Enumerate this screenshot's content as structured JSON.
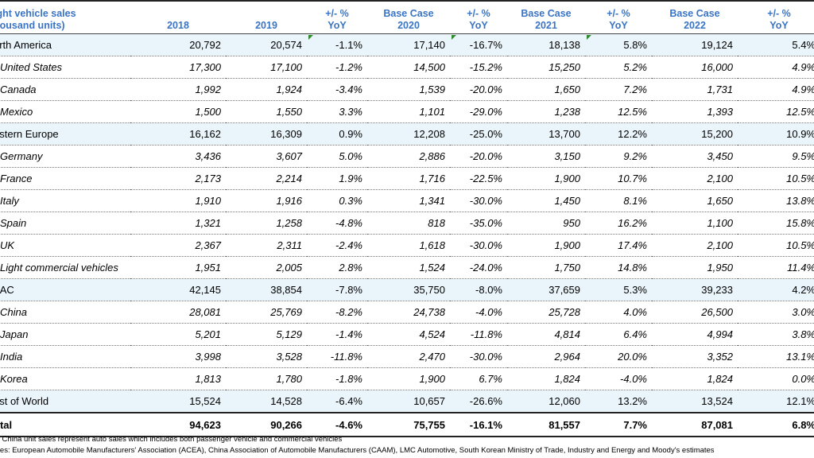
{
  "header": {
    "col0_line1": "ight vehicle sales",
    "col0_line2": "housand units)",
    "c2018": "2018",
    "c2019": "2019",
    "c_yoy1_l1": "+/- %",
    "c_yoy1_l2": "YoY",
    "c_base2020_l1": "Base Case",
    "c_base2020_l2": "2020",
    "c_yoy2_l1": "+/- %",
    "c_yoy2_l2": "YoY",
    "c_base2021_l1": "Base Case",
    "c_base2021_l2": "2021",
    "c_yoy3_l1": "+/- %",
    "c_yoy3_l2": "YoY",
    "c_base2022_l1": "Base Case",
    "c_base2022_l2": "2022",
    "c_yoy4_l1": "+/- %",
    "c_yoy4_l2": "YoY"
  },
  "rows": [
    {
      "name": "orth America",
      "v2018": "20,792",
      "v2019": "20,574",
      "y1": "-1.1%",
      "b2020": "17,140",
      "y2": "-16.7%",
      "b2021": "18,138",
      "y3": "5.8%",
      "b2022": "19,124",
      "y4": "5.4%"
    },
    {
      "name": "United States",
      "v2018": "17,300",
      "v2019": "17,100",
      "y1": "-1.2%",
      "b2020": "14,500",
      "y2": "-15.2%",
      "b2021": "15,250",
      "y3": "5.2%",
      "b2022": "16,000",
      "y4": "4.9%"
    },
    {
      "name": "Canada",
      "v2018": "1,992",
      "v2019": "1,924",
      "y1": "-3.4%",
      "b2020": "1,539",
      "y2": "-20.0%",
      "b2021": "1,650",
      "y3": "7.2%",
      "b2022": "1,731",
      "y4": "4.9%"
    },
    {
      "name": "Mexico",
      "v2018": "1,500",
      "v2019": "1,550",
      "y1": "3.3%",
      "b2020": "1,101",
      "y2": "-29.0%",
      "b2021": "1,238",
      "y3": "12.5%",
      "b2022": "1,393",
      "y4": "12.5%"
    },
    {
      "name": "estern Europe",
      "v2018": "16,162",
      "v2019": "16,309",
      "y1": "0.9%",
      "b2020": "12,208",
      "y2": "-25.0%",
      "b2021": "13,700",
      "y3": "12.2%",
      "b2022": "15,200",
      "y4": "10.9%"
    },
    {
      "name": "Germany",
      "v2018": "3,436",
      "v2019": "3,607",
      "y1": "5.0%",
      "b2020": "2,886",
      "y2": "-20.0%",
      "b2021": "3,150",
      "y3": "9.2%",
      "b2022": "3,450",
      "y4": "9.5%"
    },
    {
      "name": "France",
      "v2018": "2,173",
      "v2019": "2,214",
      "y1": "1.9%",
      "b2020": "1,716",
      "y2": "-22.5%",
      "b2021": "1,900",
      "y3": "10.7%",
      "b2022": "2,100",
      "y4": "10.5%"
    },
    {
      "name": "Italy",
      "v2018": "1,910",
      "v2019": "1,916",
      "y1": "0.3%",
      "b2020": "1,341",
      "y2": "-30.0%",
      "b2021": "1,450",
      "y3": "8.1%",
      "b2022": "1,650",
      "y4": "13.8%"
    },
    {
      "name": "Spain",
      "v2018": "1,321",
      "v2019": "1,258",
      "y1": "-4.8%",
      "b2020": "818",
      "y2": "-35.0%",
      "b2021": "950",
      "y3": "16.2%",
      "b2022": "1,100",
      "y4": "15.8%"
    },
    {
      "name": "UK",
      "v2018": "2,367",
      "v2019": "2,311",
      "y1": "-2.4%",
      "b2020": "1,618",
      "y2": "-30.0%",
      "b2021": "1,900",
      "y3": "17.4%",
      "b2022": "2,100",
      "y4": "10.5%"
    },
    {
      "name": "Light commercial vehicles",
      "v2018": "1,951",
      "v2019": "2,005",
      "y1": "2.8%",
      "b2020": "1,524",
      "y2": "-24.0%",
      "b2021": "1,750",
      "y3": "14.8%",
      "b2022": "1,950",
      "y4": "11.4%"
    },
    {
      "name": "PAC",
      "v2018": "42,145",
      "v2019": "38,854",
      "y1": "-7.8%",
      "b2020": "35,750",
      "y2": "-8.0%",
      "b2021": "37,659",
      "y3": "5.3%",
      "b2022": "39,233",
      "y4": "4.2%"
    },
    {
      "name": "China",
      "v2018": "28,081",
      "v2019": "25,769",
      "y1": "-8.2%",
      "b2020": "24,738",
      "y2": "-4.0%",
      "b2021": "25,728",
      "y3": "4.0%",
      "b2022": "26,500",
      "y4": "3.0%"
    },
    {
      "name": "Japan",
      "v2018": "5,201",
      "v2019": "5,129",
      "y1": "-1.4%",
      "b2020": "4,524",
      "y2": "-11.8%",
      "b2021": "4,814",
      "y3": "6.4%",
      "b2022": "4,994",
      "y4": "3.8%"
    },
    {
      "name": "India",
      "v2018": "3,998",
      "v2019": "3,528",
      "y1": "-11.8%",
      "b2020": "2,470",
      "y2": "-30.0%",
      "b2021": "2,964",
      "y3": "20.0%",
      "b2022": "3,352",
      "y4": "13.1%"
    },
    {
      "name": "Korea",
      "v2018": "1,813",
      "v2019": "1,780",
      "y1": "-1.8%",
      "b2020": "1,900",
      "y2": "6.7%",
      "b2021": "1,824",
      "y3": "-4.0%",
      "b2022": "1,824",
      "y4": "0.0%"
    },
    {
      "name": "est of World",
      "v2018": "15,524",
      "v2019": "14,528",
      "y1": "-6.4%",
      "b2020": "10,657",
      "y2": "-26.6%",
      "b2021": "12,060",
      "y3": "13.2%",
      "b2022": "13,524",
      "y4": "12.1%"
    }
  ],
  "total": {
    "name": "otal",
    "v2018": "94,623",
    "v2019": "90,266",
    "y1": "-4.6%",
    "b2020": "75,755",
    "y2": "-16.1%",
    "b2021": "81,557",
    "y3": "7.7%",
    "b2022": "87,081",
    "y4": "6.8%"
  },
  "notes": {
    "note1": "e: China unit sales represent auto sales which includes both passenger vehicle and commercial vehicles",
    "note2": "rces: European Automobile Manufacturers' Association (ACEA), China Association of Automobile Manufacturers (CAAM), LMC Automotive, South Korean Ministry of Trade, Industry and Energy and Moody's estimates"
  },
  "colors": {
    "header_text": "#3a74c4",
    "region_fill": "#eaf5fb",
    "flag_green": "#2e8b2e"
  }
}
